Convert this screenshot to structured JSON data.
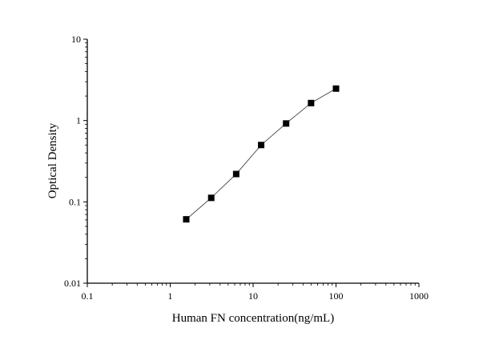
{
  "chart_data": {
    "type": "line",
    "title": "",
    "xlabel": "Human FN concentration(ng/mL)",
    "ylabel": "Optical Density",
    "x_scale": "log",
    "y_scale": "log",
    "xlim": [
      0.1,
      1000
    ],
    "ylim": [
      0.01,
      10
    ],
    "x_ticks": [
      "0.1",
      "1",
      "10",
      "100",
      "1000"
    ],
    "y_ticks": [
      "0.01",
      "0.1",
      "1",
      "10"
    ],
    "grid": false,
    "marker": "square",
    "colors": {
      "line": "#555555",
      "marker": "#000000"
    },
    "series": [
      {
        "x": [
          1.56,
          3.125,
          6.25,
          12.5,
          25,
          50,
          100
        ],
        "y": [
          0.061,
          0.112,
          0.22,
          0.5,
          0.92,
          1.64,
          2.47
        ]
      }
    ]
  }
}
